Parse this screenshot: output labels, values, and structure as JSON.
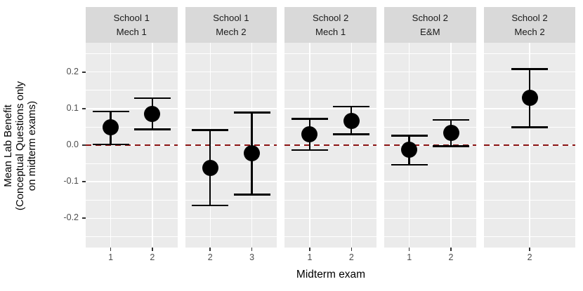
{
  "axes": {
    "y_title": "Mean Lab Benefit\n(Conceptual Questions only\non midterm exams)",
    "x_title": "Midterm exam"
  },
  "colors": {
    "panel_bg": "#EBEBEB",
    "strip_bg": "#D9D9D9",
    "grid": "#FFFFFF",
    "point": "#000000",
    "reference_line": "#8B1414",
    "tick_text": "#4D4D4D",
    "strip_text": "#1A1A1A"
  },
  "chart_data": {
    "type": "scatter",
    "subtype": "faceted-pointrange",
    "title": "",
    "xlabel": "Midterm exam",
    "ylabel": "Mean Lab Benefit (Conceptual Questions only on midterm exams)",
    "ylim": [
      -0.28,
      0.28
    ],
    "y_major_ticks": [
      0.2,
      0.1,
      0.0,
      -0.1,
      -0.2
    ],
    "y_tick_labels": [
      "0.2",
      "0.1",
      "0.0",
      "-0.1",
      "-0.2"
    ],
    "y_minor_ticks": [
      0.25,
      0.15,
      0.05,
      -0.05,
      -0.15,
      -0.25
    ],
    "grid": true,
    "legend": false,
    "reference_line": {
      "y": 0.0,
      "style": "dashed",
      "color": "#8B1414"
    },
    "facets": [
      {
        "label": "School 1\nMech 1",
        "points": [
          {
            "x": "1",
            "y": 0.048,
            "ymin": 0.002,
            "ymax": 0.092
          },
          {
            "x": "2",
            "y": 0.086,
            "ymin": 0.043,
            "ymax": 0.128
          }
        ]
      },
      {
        "label": "School 1\nMech 2",
        "points": [
          {
            "x": "2",
            "y": -0.062,
            "ymin": -0.165,
            "ymax": 0.041
          },
          {
            "x": "3",
            "y": -0.022,
            "ymin": -0.135,
            "ymax": 0.089
          }
        ]
      },
      {
        "label": "School 2\nMech 1",
        "points": [
          {
            "x": "1",
            "y": 0.029,
            "ymin": -0.014,
            "ymax": 0.072
          },
          {
            "x": "2",
            "y": 0.067,
            "ymin": 0.03,
            "ymax": 0.105
          }
        ]
      },
      {
        "label": "School 2\nE&M",
        "points": [
          {
            "x": "1",
            "y": -0.012,
            "ymin": -0.054,
            "ymax": 0.026
          },
          {
            "x": "2",
            "y": 0.034,
            "ymin": -0.003,
            "ymax": 0.069
          }
        ]
      },
      {
        "label": "School 2\nMech 2",
        "points": [
          {
            "x": "2",
            "y": 0.129,
            "ymin": 0.049,
            "ymax": 0.208
          }
        ]
      }
    ]
  }
}
